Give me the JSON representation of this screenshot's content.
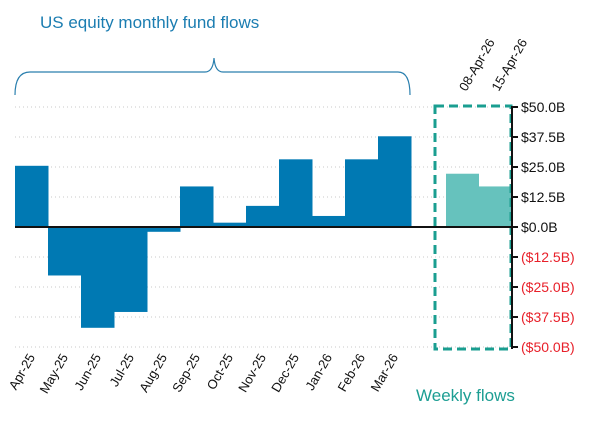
{
  "chart_data": {
    "type": "bar",
    "title": "US equity monthly fund flows",
    "units": "USD billions",
    "categories": [
      "Apr-25",
      "May-25",
      "Jun-25",
      "Jul-25",
      "Aug-25",
      "Sep-25",
      "Oct-25",
      "Nov-25",
      "Dec-25",
      "Jan-26",
      "Feb-26",
      "Mar-26"
    ],
    "values": [
      25.5,
      -20.2,
      -42.0,
      -35.4,
      -2.0,
      16.9,
      1.8,
      8.8,
      28.2,
      4.6,
      28.2,
      37.8
    ],
    "weekly": {
      "label": "Weekly flows",
      "categories": [
        "08-Apr-26",
        "15-Apr-26"
      ],
      "values": [
        22.2,
        16.9
      ]
    },
    "yticks": [
      50,
      37.5,
      25,
      12.5,
      0,
      -12.5,
      -25,
      -37.5,
      -50
    ],
    "ytick_labels": [
      "$50.0B",
      "$37.5B",
      "$25.0B",
      "$12.5B",
      "$0.0B",
      "($12.5B)",
      "($25.0B)",
      "($37.5B)",
      "($50.0B)"
    ],
    "ylim": [
      -50,
      50
    ],
    "grid": true,
    "colors": {
      "monthly": "#0079b3",
      "weekly": "#66c2bd",
      "box": "#1a9e90",
      "negative_label": "#e8202a",
      "title": "#1b7db1"
    }
  }
}
